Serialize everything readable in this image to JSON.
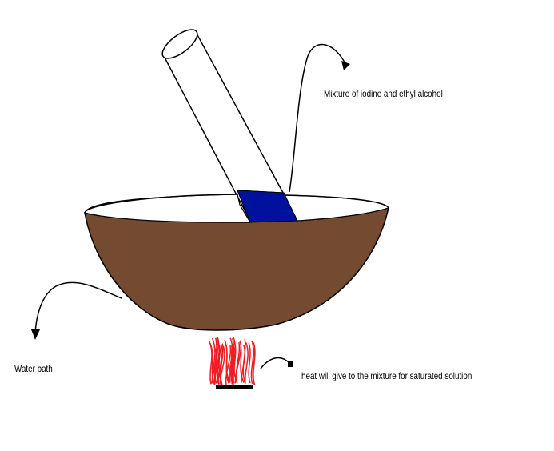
{
  "labels": {
    "mixture": "Mixture of iodine and ethyl alcohol",
    "water_bath": "Water bath",
    "heat": "heat will give to the mixture for saturated solution"
  },
  "colors": {
    "bowl": "#744a31",
    "mixture": "#00119e",
    "flame": "#ee1c24",
    "burner": "#000000",
    "outline": "#000000",
    "background": "#ffffff"
  }
}
